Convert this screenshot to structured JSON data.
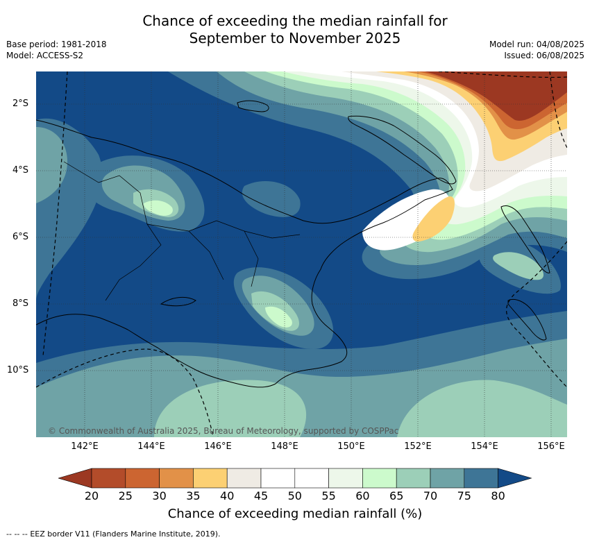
{
  "title": {
    "line1": "Chance of exceeding the median rainfall for",
    "line2": "September to November 2025"
  },
  "meta_left": {
    "base_period": "Base period: 1981-2018",
    "model": "Model: ACCESS-S2"
  },
  "meta_right": {
    "model_run": "Model run: 04/08/2025",
    "issued": "Issued: 06/08/2025"
  },
  "lat_labels": [
    "2°S",
    "4°S",
    "6°S",
    "8°S",
    "10°S"
  ],
  "lon_labels": [
    "142°E",
    "144°E",
    "146°E",
    "148°E",
    "150°E",
    "152°E",
    "154°E",
    "156°E"
  ],
  "credit": "© Commonwealth of Australia 2025, Bureau of Meteorology, supported by COSPPac",
  "colorbar": {
    "ticks": [
      "20",
      "25",
      "30",
      "35",
      "40",
      "45",
      "50",
      "55",
      "60",
      "65",
      "70",
      "75",
      "80"
    ],
    "colors": [
      "#9c3822",
      "#b34c2a",
      "#cc6531",
      "#e29148",
      "#fcd073",
      "#efebe4",
      "#ffffff",
      "#ffffff",
      "#edf7ea",
      "#ccfacc",
      "#9ccfb8",
      "#6fa3a6",
      "#3e7596",
      "#134a87"
    ],
    "title": "Chance of exceeding median rainfall (%)"
  },
  "legend": {
    "eez_text": "-- EEZ border V11 (Flanders Marine Institute, 2019)."
  }
}
